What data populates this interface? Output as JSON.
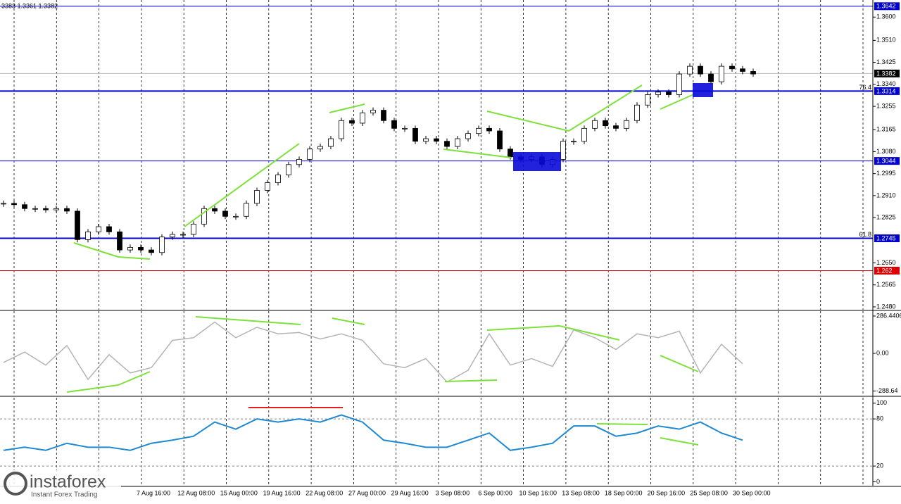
{
  "header_text": "3383 1.3361 1.3382",
  "logo": {
    "name": "instaforex",
    "tagline": "Instant Forex Trading"
  },
  "x_labels": [
    "7 Aug 16:00",
    "12 Aug 08:00",
    "15 Aug 00:00",
    "19 Aug 16:00",
    "22 Aug 08:00",
    "27 Aug 00:00",
    "29 Aug 16:00",
    "3 Sep 08:00",
    "6 Sep 00:00",
    "10 Sep 16:00",
    "13 Sep 08:00",
    "18 Sep 00:00",
    "20 Sep 16:00",
    "25 Sep 08:00",
    "30 Sep 00:00"
  ],
  "chart_data": [
    {
      "type": "candlestick",
      "closes": [
        1.288,
        1.2875,
        1.286,
        1.286,
        1.2855,
        1.286,
        1.285,
        1.274,
        1.277,
        1.279,
        1.277,
        1.27,
        1.271,
        1.27,
        1.269,
        1.275,
        1.276,
        1.276,
        1.28,
        1.286,
        1.285,
        1.283,
        1.283,
        1.288,
        1.293,
        1.296,
        1.299,
        1.303,
        1.305,
        1.309,
        1.31,
        1.313,
        1.32,
        1.319,
        1.323,
        1.324,
        1.32,
        1.317,
        1.317,
        1.312,
        1.313,
        1.312,
        1.31,
        1.313,
        1.315,
        1.317,
        1.316,
        1.309,
        1.306,
        1.305,
        1.306,
        1.303,
        1.305,
        1.312,
        1.312,
        1.317,
        1.32,
        1.318,
        1.317,
        1.32,
        1.326,
        1.33,
        1.331,
        1.33,
        1.338,
        1.341,
        1.338,
        1.335,
        1.341,
        1.34,
        1.339,
        1.338
      ],
      "ylim": [
        1.2469,
        1.3666
      ],
      "yticks": [
        {
          "value": 1.36,
          "label": "1.3600"
        },
        {
          "value": 1.351,
          "label": "1.3510"
        },
        {
          "value": 1.3425,
          "label": "1.3425"
        },
        {
          "value": 1.334,
          "label": "1.3340"
        },
        {
          "value": 1.3255,
          "label": "1.3255"
        },
        {
          "value": 1.3165,
          "label": "1.3165"
        },
        {
          "value": 1.308,
          "label": "1.3080"
        },
        {
          "value": 1.2995,
          "label": "1.2995"
        },
        {
          "value": 1.291,
          "label": "1.2910"
        },
        {
          "value": 1.2825,
          "label": "1.2825"
        },
        {
          "value": 1.265,
          "label": "1.2650"
        },
        {
          "value": 1.2565,
          "label": "1.2565"
        },
        {
          "value": 1.248,
          "label": "1.2480"
        }
      ],
      "levels": [
        {
          "value": 1.3642,
          "color": "#0000cc"
        },
        {
          "value": 1.3314,
          "color": "#0000cc",
          "fib": "76.4"
        },
        {
          "value": 1.3044,
          "color": "#0000cc"
        },
        {
          "value": 1.2745,
          "color": "#0000cc",
          "fib": "61.8"
        },
        {
          "value": 1.262,
          "color": "#dd0000"
        },
        {
          "value": 1.3382,
          "color": "#000000"
        }
      ]
    },
    {
      "type": "line",
      "color": "#b4b4b4",
      "values": [
        -70,
        10,
        -90,
        60,
        -200,
        -10,
        -150,
        -110,
        100,
        120,
        240,
        120,
        200,
        150,
        160,
        110,
        150,
        100,
        -80,
        -110,
        -40,
        -220,
        -130,
        150,
        -90,
        -40,
        -100,
        180,
        120,
        30,
        150,
        120,
        170,
        -150,
        70,
        -80
      ],
      "ylim": [
        -324,
        324
      ],
      "yticks": [
        286.4406,
        {
          "value": 0,
          "label": "0.00"
        },
        -288.64
      ]
    },
    {
      "type": "line",
      "color": "#1e88d0",
      "values": [
        40,
        44,
        40,
        49,
        44,
        44,
        40,
        49,
        53,
        58,
        76,
        67,
        80,
        76,
        80,
        76,
        85,
        76,
        53,
        49,
        44,
        44,
        53,
        62,
        40,
        44,
        49,
        71,
        71,
        58,
        62,
        71,
        67,
        76,
        62,
        53
      ],
      "ylim": [
        -5,
        107
      ],
      "yticks": [
        0,
        20,
        80,
        100
      ]
    }
  ]
}
